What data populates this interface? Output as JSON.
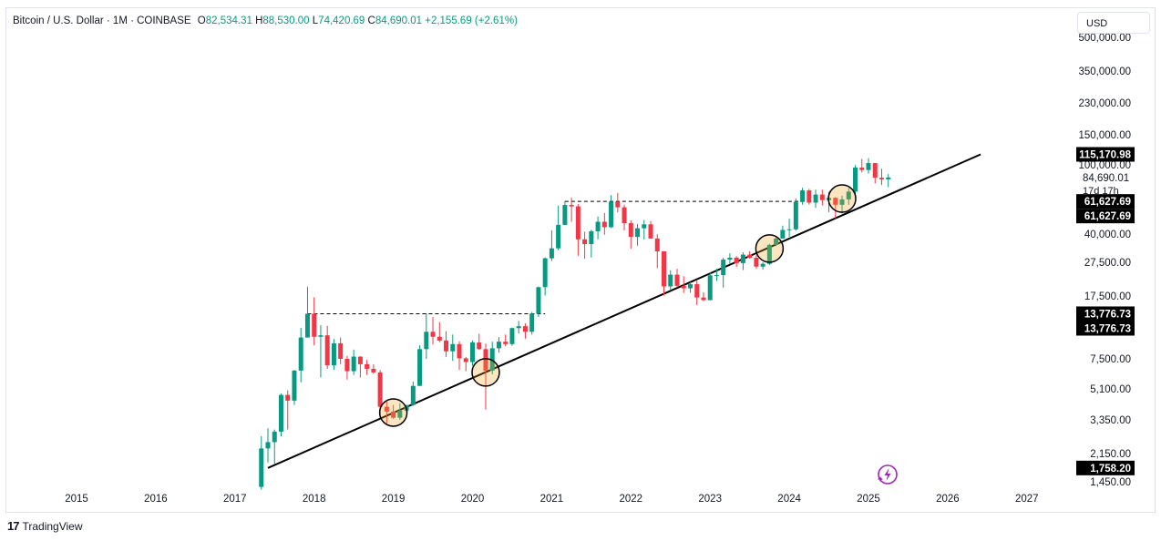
{
  "header": {
    "symbol": "Bitcoin / U.S. Dollar · 1M · COINBASE",
    "open_label": "O",
    "open": "82,534.31",
    "high_label": "H",
    "high": "88,530.00",
    "low_label": "L",
    "low": "74,420.69",
    "close_label": "C",
    "close": "84,690.01",
    "change": "+2,155.69 (+2.61%)"
  },
  "currency_button": "USD",
  "footer": {
    "brand": "TradingView"
  },
  "colors": {
    "up": "#089981",
    "down": "#f23645",
    "line": "#000000"
  },
  "chart_data": {
    "type": "candlestick",
    "title": "Bitcoin / U.S. Dollar · 1M · COINBASE",
    "y_scale": "log",
    "ylim": [
      1450,
      600000
    ],
    "x_tick_labels": [
      "2015",
      "2016",
      "2017",
      "2018",
      "2019",
      "2020",
      "2021",
      "2022",
      "2023",
      "2024",
      "2025",
      "2026",
      "2027"
    ],
    "y_tick_labels": [
      "500,000.00",
      "350,000.00",
      "230,000.00",
      "150,000.00",
      "100,000.00",
      "40,000.00",
      "27,500.00",
      "17,500.00",
      "7,500.00",
      "5,100.00",
      "3,350.00",
      "2,150.00",
      "1,450.00"
    ],
    "price_labels": [
      {
        "text": "115,170.98",
        "value": 115170.98
      },
      {
        "text": "84,690.01",
        "value": 84690.01,
        "sub": "17d 17h"
      },
      {
        "text": "61,627.69",
        "value": 61627.69
      },
      {
        "text": "61,627.69",
        "value": 61627.69
      },
      {
        "text": "13,776.73",
        "value": 13776.73
      },
      {
        "text": "13,776.73",
        "value": 13776.73
      },
      {
        "text": "1,758.20",
        "value": 1758.2
      }
    ],
    "trendline": {
      "from": [
        "2017-06",
        1758.2
      ],
      "to": [
        "2026-06",
        115170.98
      ]
    },
    "horizontal_levels": [
      {
        "value": 13776.73,
        "from": "2017-12",
        "to": "2020-12"
      },
      {
        "value": 61627.69,
        "from": "2021-03",
        "to": "2024-03"
      }
    ],
    "circles": [
      {
        "date": "2019-01",
        "value": 3700
      },
      {
        "date": "2020-03",
        "value": 6300
      },
      {
        "date": "2023-10",
        "value": 33000
      },
      {
        "date": "2024-09",
        "value": 64000
      }
    ],
    "candles": [
      {
        "t": "2017-05",
        "o": 1350,
        "h": 2700,
        "l": 1300,
        "c": 2300
      },
      {
        "t": "2017-06",
        "o": 2300,
        "h": 3000,
        "l": 1900,
        "c": 2500
      },
      {
        "t": "2017-07",
        "o": 2500,
        "h": 2950,
        "l": 1850,
        "c": 2870
      },
      {
        "t": "2017-08",
        "o": 2870,
        "h": 4800,
        "l": 2700,
        "c": 4700
      },
      {
        "t": "2017-09",
        "o": 4700,
        "h": 5000,
        "l": 2950,
        "c": 4350
      },
      {
        "t": "2017-10",
        "o": 4350,
        "h": 6500,
        "l": 4100,
        "c": 6450
      },
      {
        "t": "2017-11",
        "o": 6450,
        "h": 11400,
        "l": 5550,
        "c": 10000
      },
      {
        "t": "2017-12",
        "o": 10000,
        "h": 19800,
        "l": 10700,
        "c": 13776
      },
      {
        "t": "2018-01",
        "o": 13776,
        "h": 17200,
        "l": 9000,
        "c": 10100
      },
      {
        "t": "2018-02",
        "o": 10100,
        "h": 11800,
        "l": 5900,
        "c": 10300
      },
      {
        "t": "2018-03",
        "o": 10300,
        "h": 11700,
        "l": 6600,
        "c": 6900
      },
      {
        "t": "2018-04",
        "o": 6900,
        "h": 9800,
        "l": 6500,
        "c": 9250
      },
      {
        "t": "2018-05",
        "o": 9250,
        "h": 10000,
        "l": 7000,
        "c": 7500
      },
      {
        "t": "2018-06",
        "o": 7500,
        "h": 7800,
        "l": 5750,
        "c": 6400
      },
      {
        "t": "2018-07",
        "o": 6400,
        "h": 8500,
        "l": 6100,
        "c": 7730
      },
      {
        "t": "2018-08",
        "o": 7730,
        "h": 7750,
        "l": 5900,
        "c": 7000
      },
      {
        "t": "2018-09",
        "o": 7000,
        "h": 7400,
        "l": 6100,
        "c": 6600
      },
      {
        "t": "2018-10",
        "o": 6600,
        "h": 7000,
        "l": 6200,
        "c": 6300
      },
      {
        "t": "2018-11",
        "o": 6300,
        "h": 6500,
        "l": 3600,
        "c": 4000
      },
      {
        "t": "2018-12",
        "o": 4000,
        "h": 4300,
        "l": 3150,
        "c": 3750
      },
      {
        "t": "2019-01",
        "o": 3750,
        "h": 4100,
        "l": 3400,
        "c": 3450
      },
      {
        "t": "2019-02",
        "o": 3450,
        "h": 4200,
        "l": 3350,
        "c": 3800
      },
      {
        "t": "2019-03",
        "o": 3800,
        "h": 4100,
        "l": 3700,
        "c": 4100
      },
      {
        "t": "2019-04",
        "o": 4100,
        "h": 5600,
        "l": 4050,
        "c": 5300
      },
      {
        "t": "2019-05",
        "o": 5300,
        "h": 9000,
        "l": 5300,
        "c": 8550
      },
      {
        "t": "2019-06",
        "o": 8550,
        "h": 13880,
        "l": 7500,
        "c": 10800
      },
      {
        "t": "2019-07",
        "o": 10800,
        "h": 13200,
        "l": 9100,
        "c": 10100
      },
      {
        "t": "2019-08",
        "o": 10100,
        "h": 12300,
        "l": 9400,
        "c": 9600
      },
      {
        "t": "2019-09",
        "o": 9600,
        "h": 10900,
        "l": 7700,
        "c": 8300
      },
      {
        "t": "2019-10",
        "o": 8300,
        "h": 10400,
        "l": 7300,
        "c": 9150
      },
      {
        "t": "2019-11",
        "o": 9150,
        "h": 9500,
        "l": 6500,
        "c": 7550
      },
      {
        "t": "2019-12",
        "o": 7550,
        "h": 7700,
        "l": 6400,
        "c": 7200
      },
      {
        "t": "2020-01",
        "o": 7200,
        "h": 9600,
        "l": 6850,
        "c": 9350
      },
      {
        "t": "2020-02",
        "o": 9350,
        "h": 10500,
        "l": 8450,
        "c": 8550
      },
      {
        "t": "2020-03",
        "o": 8550,
        "h": 9200,
        "l": 3850,
        "c": 6450
      },
      {
        "t": "2020-04",
        "o": 6450,
        "h": 9450,
        "l": 6150,
        "c": 8650
      },
      {
        "t": "2020-05",
        "o": 8650,
        "h": 10050,
        "l": 8150,
        "c": 9450
      },
      {
        "t": "2020-06",
        "o": 9450,
        "h": 10400,
        "l": 8900,
        "c": 9150
      },
      {
        "t": "2020-07",
        "o": 9150,
        "h": 11450,
        "l": 8950,
        "c": 11350
      },
      {
        "t": "2020-08",
        "o": 11350,
        "h": 12500,
        "l": 10550,
        "c": 11650
      },
      {
        "t": "2020-09",
        "o": 11650,
        "h": 12100,
        "l": 9850,
        "c": 10800
      },
      {
        "t": "2020-10",
        "o": 10800,
        "h": 14100,
        "l": 10400,
        "c": 13800
      },
      {
        "t": "2020-11",
        "o": 13800,
        "h": 19900,
        "l": 13200,
        "c": 19700
      },
      {
        "t": "2020-12",
        "o": 19700,
        "h": 29300,
        "l": 17600,
        "c": 29000
      },
      {
        "t": "2021-01",
        "o": 29000,
        "h": 42000,
        "l": 28000,
        "c": 33100
      },
      {
        "t": "2021-02",
        "o": 33100,
        "h": 58300,
        "l": 32300,
        "c": 45200
      },
      {
        "t": "2021-03",
        "o": 45200,
        "h": 61800,
        "l": 45000,
        "c": 58800
      },
      {
        "t": "2021-04",
        "o": 58800,
        "h": 64900,
        "l": 47000,
        "c": 57700
      },
      {
        "t": "2021-05",
        "o": 57700,
        "h": 59500,
        "l": 30000,
        "c": 37300
      },
      {
        "t": "2021-06",
        "o": 37300,
        "h": 41300,
        "l": 28800,
        "c": 35000
      },
      {
        "t": "2021-07",
        "o": 35000,
        "h": 42400,
        "l": 29300,
        "c": 41500
      },
      {
        "t": "2021-08",
        "o": 41500,
        "h": 50500,
        "l": 37300,
        "c": 47100
      },
      {
        "t": "2021-09",
        "o": 47100,
        "h": 52900,
        "l": 39600,
        "c": 43800
      },
      {
        "t": "2021-10",
        "o": 43800,
        "h": 67000,
        "l": 43300,
        "c": 61300
      },
      {
        "t": "2021-11",
        "o": 61300,
        "h": 69000,
        "l": 53300,
        "c": 57000
      },
      {
        "t": "2021-12",
        "o": 57000,
        "h": 59100,
        "l": 42000,
        "c": 46200
      },
      {
        "t": "2022-01",
        "o": 46200,
        "h": 47900,
        "l": 32900,
        "c": 38500
      },
      {
        "t": "2022-02",
        "o": 38500,
        "h": 45800,
        "l": 34300,
        "c": 43200
      },
      {
        "t": "2022-03",
        "o": 43200,
        "h": 48200,
        "l": 37200,
        "c": 45500
      },
      {
        "t": "2022-04",
        "o": 45500,
        "h": 47400,
        "l": 37600,
        "c": 37700
      },
      {
        "t": "2022-05",
        "o": 37700,
        "h": 39900,
        "l": 25400,
        "c": 31800
      },
      {
        "t": "2022-06",
        "o": 31800,
        "h": 31900,
        "l": 17600,
        "c": 19900
      },
      {
        "t": "2022-07",
        "o": 19900,
        "h": 24700,
        "l": 18800,
        "c": 23300
      },
      {
        "t": "2022-08",
        "o": 23300,
        "h": 25200,
        "l": 19600,
        "c": 20050
      },
      {
        "t": "2022-09",
        "o": 20050,
        "h": 22800,
        "l": 18200,
        "c": 19400
      },
      {
        "t": "2022-10",
        "o": 19400,
        "h": 21100,
        "l": 18300,
        "c": 20500
      },
      {
        "t": "2022-11",
        "o": 20500,
        "h": 21500,
        "l": 15500,
        "c": 17150
      },
      {
        "t": "2022-12",
        "o": 17150,
        "h": 18400,
        "l": 16300,
        "c": 16550
      },
      {
        "t": "2023-01",
        "o": 16550,
        "h": 23950,
        "l": 16500,
        "c": 23100
      },
      {
        "t": "2023-02",
        "o": 23100,
        "h": 25250,
        "l": 21400,
        "c": 23150
      },
      {
        "t": "2023-03",
        "o": 23150,
        "h": 29200,
        "l": 19600,
        "c": 28500
      },
      {
        "t": "2023-04",
        "o": 28500,
        "h": 31000,
        "l": 26950,
        "c": 29250
      },
      {
        "t": "2023-05",
        "o": 29250,
        "h": 29800,
        "l": 25800,
        "c": 27200
      },
      {
        "t": "2023-06",
        "o": 27200,
        "h": 31400,
        "l": 24800,
        "c": 30450
      },
      {
        "t": "2023-07",
        "o": 30450,
        "h": 31800,
        "l": 28850,
        "c": 29200
      },
      {
        "t": "2023-08",
        "o": 29200,
        "h": 30200,
        "l": 25150,
        "c": 25950
      },
      {
        "t": "2023-09",
        "o": 25950,
        "h": 27500,
        "l": 24900,
        "c": 26950
      },
      {
        "t": "2023-10",
        "o": 26950,
        "h": 35150,
        "l": 26550,
        "c": 34650
      },
      {
        "t": "2023-11",
        "o": 34650,
        "h": 38450,
        "l": 34100,
        "c": 37700
      },
      {
        "t": "2023-12",
        "o": 37700,
        "h": 44700,
        "l": 37600,
        "c": 42250
      },
      {
        "t": "2024-01",
        "o": 42250,
        "h": 48950,
        "l": 38550,
        "c": 42600
      },
      {
        "t": "2024-02",
        "o": 42600,
        "h": 64000,
        "l": 41850,
        "c": 61200
      },
      {
        "t": "2024-03",
        "o": 61200,
        "h": 73800,
        "l": 59000,
        "c": 71300
      },
      {
        "t": "2024-04",
        "o": 71300,
        "h": 72800,
        "l": 59100,
        "c": 60650
      },
      {
        "t": "2024-05",
        "o": 60650,
        "h": 71950,
        "l": 56550,
        "c": 67500
      },
      {
        "t": "2024-06",
        "o": 67500,
        "h": 71950,
        "l": 58400,
        "c": 62700
      },
      {
        "t": "2024-07",
        "o": 62700,
        "h": 70000,
        "l": 53500,
        "c": 64600
      },
      {
        "t": "2024-08",
        "o": 64600,
        "h": 65100,
        "l": 49000,
        "c": 58950
      },
      {
        "t": "2024-09",
        "o": 58950,
        "h": 66500,
        "l": 52550,
        "c": 63300
      },
      {
        "t": "2024-10",
        "o": 63300,
        "h": 73600,
        "l": 58900,
        "c": 70200
      },
      {
        "t": "2024-11",
        "o": 70200,
        "h": 99650,
        "l": 66800,
        "c": 96400
      },
      {
        "t": "2024-12",
        "o": 96400,
        "h": 108300,
        "l": 90500,
        "c": 93400
      },
      {
        "t": "2025-01",
        "o": 93400,
        "h": 109350,
        "l": 89100,
        "c": 102400
      },
      {
        "t": "2025-02",
        "o": 102400,
        "h": 102500,
        "l": 78200,
        "c": 84350
      },
      {
        "t": "2025-03",
        "o": 84350,
        "h": 95000,
        "l": 76600,
        "c": 82550
      },
      {
        "t": "2025-04",
        "o": 82534.31,
        "h": 88530,
        "l": 74420.69,
        "c": 84690.01
      }
    ]
  }
}
